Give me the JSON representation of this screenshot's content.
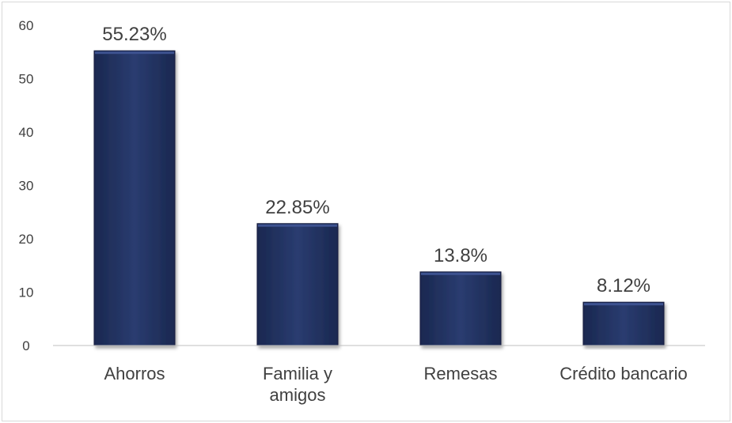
{
  "chart_data": {
    "type": "bar",
    "categories": [
      "Ahorros",
      "Familia y amigos",
      "Remesas",
      "Crédito bancario"
    ],
    "category_lines": [
      [
        "Ahorros"
      ],
      [
        "Familia y",
        "amigos"
      ],
      [
        "Remesas"
      ],
      [
        "Crédito bancario"
      ]
    ],
    "values": [
      55.23,
      22.85,
      13.8,
      8.12
    ],
    "data_labels": [
      "55.23%",
      "22.85%",
      "13.8%",
      "8.12%"
    ],
    "ylim": [
      0,
      60
    ],
    "yticks": [
      0,
      10,
      20,
      30,
      40,
      50,
      60
    ],
    "grid": false,
    "title": "",
    "xlabel": "",
    "ylabel": "",
    "colors": {
      "bar": "#233462",
      "bar_top": "#3d5290",
      "bar_edge": "#141f40",
      "axis": "#bfbfbf",
      "text": "#404040"
    }
  }
}
